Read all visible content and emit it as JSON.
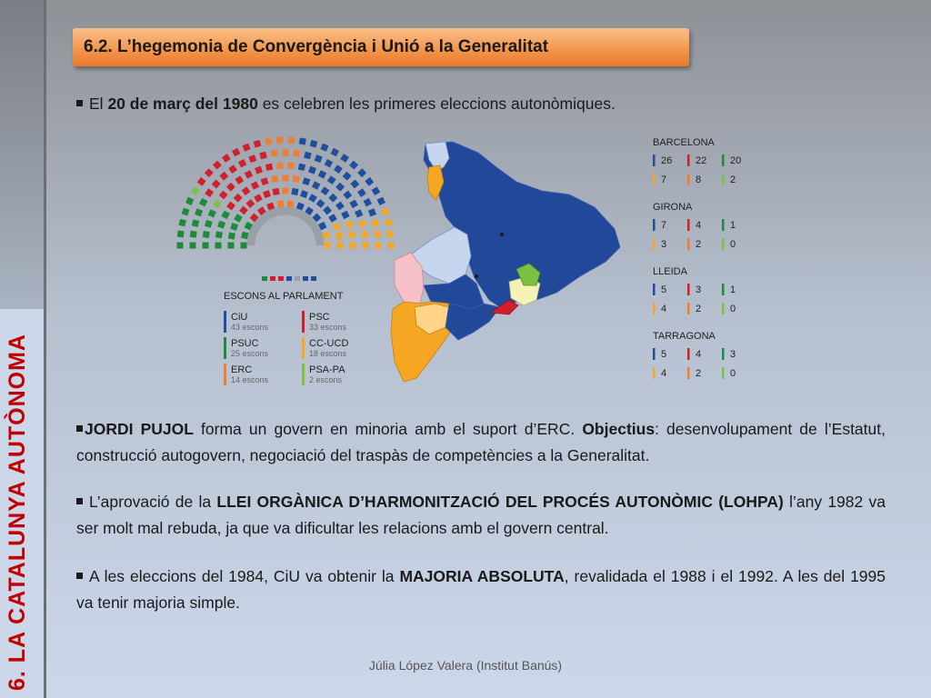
{
  "side_title": "6. LA CATALUNYA AUTÒNOMA",
  "section_title": "6.2. L’hegemonia de Convergència i Unió a la Generalitat",
  "bullet1": {
    "pre": "El ",
    "bold": "20 de març del 1980",
    "post": " es celebren les primeres eleccions autonòmiques."
  },
  "parliament": {
    "title": "ESCONS AL PARLAMENT",
    "parties": [
      {
        "name": "CiU",
        "seats_label": "43 escons",
        "seats": 43,
        "color": "#1f4e9c"
      },
      {
        "name": "PSC",
        "seats_label": "33 escons",
        "seats": 33,
        "color": "#d0202e"
      },
      {
        "name": "PSUC",
        "seats_label": "25 escons",
        "seats": 25,
        "color": "#1e8a3c"
      },
      {
        "name": "CC-UCD",
        "seats_label": "18 escons",
        "seats": 18,
        "color": "#f5a623"
      },
      {
        "name": "ERC",
        "seats_label": "14 escons",
        "seats": 14,
        "color": "#ef7f2e"
      },
      {
        "name": "PSA-PA",
        "seats_label": "2 escons",
        "seats": 2,
        "color": "#7cc242"
      }
    ]
  },
  "provinces": [
    {
      "name": "BARCELONA",
      "values": [
        "26",
        "22",
        "20",
        "7",
        "8",
        "2"
      ]
    },
    {
      "name": "GIRONA",
      "values": [
        "7",
        "4",
        "1",
        "3",
        "2",
        "0"
      ]
    },
    {
      "name": "LLEIDA",
      "values": [
        "5",
        "3",
        "1",
        "4",
        "2",
        "0"
      ]
    },
    {
      "name": "TARRAGONA",
      "values": [
        "5",
        "4",
        "3",
        "4",
        "2",
        "0"
      ]
    }
  ],
  "value_colors": [
    "#1f4e9c",
    "#d0202e",
    "#1e8a3c",
    "#f5a623",
    "#ef7f2e",
    "#7cc242"
  ],
  "para1": {
    "bold1": "JORDI PUJOL",
    "text1": " forma un govern en minoria amb el suport d’ERC.  ",
    "bold2": "Objectius",
    "text2": ": desenvolupament de l’Estatut, construcció autogovern, negociació del traspàs de competències a la Generalitat."
  },
  "para2": {
    "text1": "L’aprovació de la ",
    "bold1": "LLEI ORGÀNICA D’HARMONITZACIÓ DEL PROCÉS AUTONÒMIC (LOHPA)",
    "text2": " l’any 1982 va ser molt mal rebuda, ja que va dificultar les relacions amb el govern central."
  },
  "para3": {
    "text1": "A les eleccions del 1984, CiU va obtenir la ",
    "bold1": "MAJORIA ABSOLUTA",
    "text2": ", revalidada el 1988 i el 1992. A les del 1995 va tenir majoria simple."
  },
  "footer": "Júlia López Valera (Institut Banús)"
}
